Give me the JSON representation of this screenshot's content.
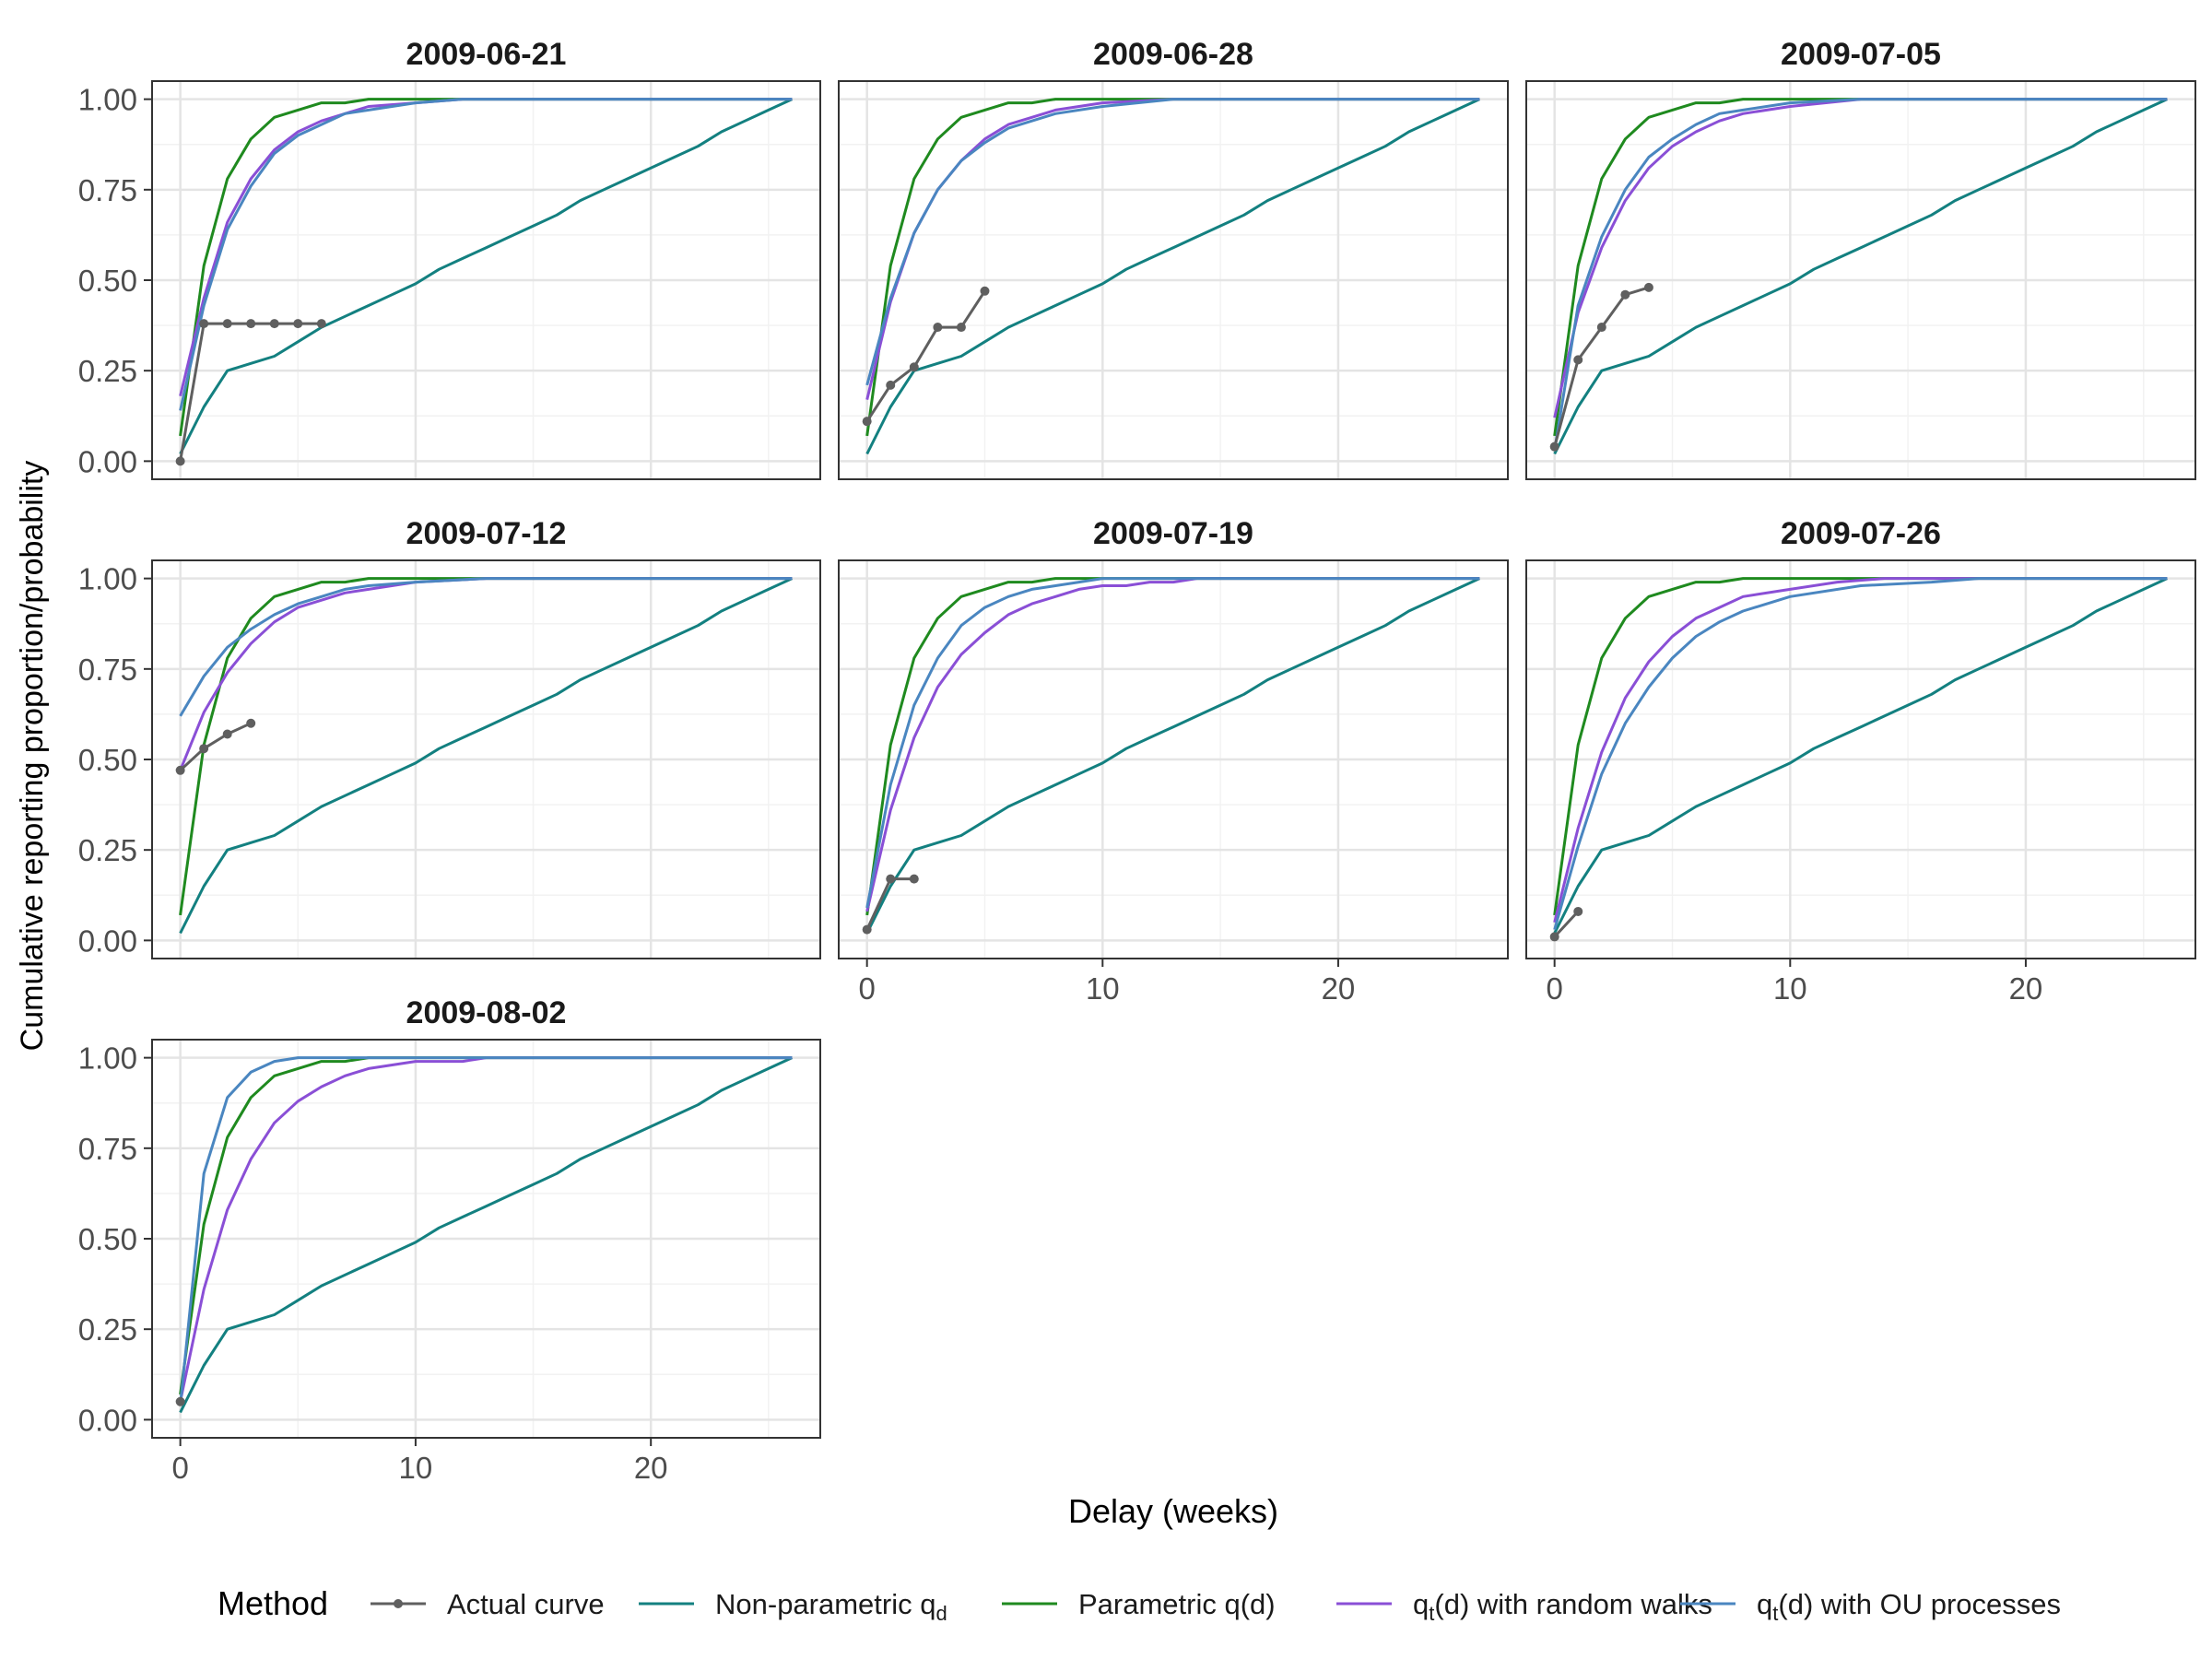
{
  "chart_data": {
    "type": "line",
    "xlabel": "Delay (weeks)",
    "ylabel": "Cumulative reporting proportion/probability",
    "x_ticks": [
      0,
      10,
      20
    ],
    "x_tick_labels": [
      "0",
      "10",
      "20"
    ],
    "y_ticks": [
      0,
      0.25,
      0.5,
      0.75,
      1
    ],
    "y_tick_labels": [
      "0.00",
      "0.25",
      "0.50",
      "0.75",
      "1.00"
    ],
    "xlim": [
      -1.2,
      27.2
    ],
    "ylim": [
      -0.05,
      1.05
    ],
    "grid": true,
    "legend": {
      "position": "bottom",
      "title": "Method",
      "entries": [
        {
          "key": "actual",
          "label": "Actual curve"
        },
        {
          "key": "nonparam",
          "label": "Non-parametric q",
          "sub": "d",
          "post": ""
        },
        {
          "key": "param",
          "label": "Parametric q(d)"
        },
        {
          "key": "rw",
          "label": "q",
          "sub": "t",
          "post": "(d) with random walks"
        },
        {
          "key": "ou",
          "label": "q",
          "sub": "t",
          "post": "(d) with OU processes"
        }
      ]
    },
    "colors": {
      "actual": "#5f5f5f",
      "nonparam": "#138080",
      "param": "#1f8a1f",
      "rw": "#8a4fd6",
      "ou": "#4a86c0"
    },
    "common_series": {
      "nonparam": {
        "x": [
          0,
          1,
          2,
          3,
          4,
          5,
          6,
          7,
          8,
          9,
          10,
          11,
          12,
          13,
          14,
          15,
          16,
          17,
          18,
          19,
          20,
          21,
          22,
          23,
          24,
          25,
          26
        ],
        "y": [
          0.02,
          0.15,
          0.25,
          0.27,
          0.29,
          0.33,
          0.37,
          0.4,
          0.43,
          0.46,
          0.49,
          0.53,
          0.56,
          0.59,
          0.62,
          0.65,
          0.68,
          0.72,
          0.75,
          0.78,
          0.81,
          0.84,
          0.87,
          0.91,
          0.94,
          0.97,
          1.0
        ]
      },
      "param": {
        "x": [
          0,
          1,
          2,
          3,
          4,
          5,
          6,
          7,
          8,
          9,
          10,
          11,
          12,
          13,
          14,
          15,
          16,
          17,
          18,
          19,
          20,
          21,
          22,
          23,
          24,
          25,
          26
        ],
        "y": [
          0.07,
          0.54,
          0.78,
          0.89,
          0.95,
          0.97,
          0.99,
          0.99,
          1.0,
          1.0,
          1.0,
          1.0,
          1.0,
          1.0,
          1.0,
          1.0,
          1.0,
          1.0,
          1.0,
          1.0,
          1.0,
          1.0,
          1.0,
          1.0,
          1.0,
          1.0,
          1.0
        ]
      }
    },
    "panels": [
      {
        "title": "2009-06-21",
        "actual": {
          "x": [
            0,
            1,
            2,
            3,
            4,
            5,
            6
          ],
          "y": [
            0.0,
            0.38,
            0.38,
            0.38,
            0.38,
            0.38,
            0.38
          ]
        },
        "rw": {
          "x": [
            0,
            1,
            2,
            3,
            4,
            5,
            6,
            7,
            8,
            10,
            12,
            26
          ],
          "y": [
            0.18,
            0.45,
            0.66,
            0.78,
            0.86,
            0.91,
            0.94,
            0.96,
            0.98,
            0.99,
            1.0,
            1.0
          ]
        },
        "ou": {
          "x": [
            0,
            1,
            2,
            3,
            4,
            5,
            6,
            7,
            8,
            10,
            12,
            26
          ],
          "y": [
            0.14,
            0.43,
            0.64,
            0.76,
            0.85,
            0.9,
            0.93,
            0.96,
            0.97,
            0.99,
            1.0,
            1.0
          ]
        }
      },
      {
        "title": "2009-06-28",
        "actual": {
          "x": [
            0,
            1,
            2,
            3,
            4,
            5
          ],
          "y": [
            0.11,
            0.21,
            0.26,
            0.37,
            0.37,
            0.47
          ]
        },
        "rw": {
          "x": [
            0,
            1,
            2,
            3,
            4,
            5,
            6,
            7,
            8,
            10,
            13,
            26
          ],
          "y": [
            0.17,
            0.44,
            0.63,
            0.75,
            0.83,
            0.89,
            0.93,
            0.95,
            0.97,
            0.99,
            1.0,
            1.0
          ]
        },
        "ou": {
          "x": [
            0,
            1,
            2,
            3,
            4,
            5,
            6,
            7,
            8,
            10,
            13,
            26
          ],
          "y": [
            0.21,
            0.45,
            0.63,
            0.75,
            0.83,
            0.88,
            0.92,
            0.94,
            0.96,
            0.98,
            1.0,
            1.0
          ]
        }
      },
      {
        "title": "2009-07-05",
        "actual": {
          "x": [
            0,
            1,
            2,
            3,
            4
          ],
          "y": [
            0.04,
            0.28,
            0.37,
            0.46,
            0.48
          ]
        },
        "rw": {
          "x": [
            0,
            1,
            2,
            3,
            4,
            5,
            6,
            7,
            8,
            10,
            13,
            26
          ],
          "y": [
            0.12,
            0.41,
            0.59,
            0.72,
            0.81,
            0.87,
            0.91,
            0.94,
            0.96,
            0.98,
            1.0,
            1.0
          ]
        },
        "ou": {
          "x": [
            0,
            1,
            2,
            3,
            4,
            5,
            6,
            7,
            8,
            10,
            13,
            26
          ],
          "y": [
            0.03,
            0.43,
            0.62,
            0.75,
            0.84,
            0.89,
            0.93,
            0.96,
            0.97,
            0.99,
            1.0,
            1.0
          ]
        }
      },
      {
        "title": "2009-07-12",
        "actual": {
          "x": [
            0,
            1,
            2,
            3
          ],
          "y": [
            0.47,
            0.53,
            0.57,
            0.6
          ]
        },
        "rw": {
          "x": [
            0,
            1,
            2,
            3,
            4,
            5,
            6,
            7,
            8,
            10,
            13,
            26
          ],
          "y": [
            0.47,
            0.63,
            0.74,
            0.82,
            0.88,
            0.92,
            0.94,
            0.96,
            0.97,
            0.99,
            1.0,
            1.0
          ]
        },
        "ou": {
          "x": [
            0,
            1,
            2,
            3,
            4,
            5,
            6,
            7,
            8,
            10,
            13,
            26
          ],
          "y": [
            0.62,
            0.73,
            0.81,
            0.86,
            0.9,
            0.93,
            0.95,
            0.97,
            0.98,
            0.99,
            1.0,
            1.0
          ]
        }
      },
      {
        "title": "2009-07-19",
        "actual": {
          "x": [
            0,
            1,
            2
          ],
          "y": [
            0.03,
            0.17,
            0.17
          ]
        },
        "rw": {
          "x": [
            0,
            1,
            2,
            3,
            4,
            5,
            6,
            7,
            8,
            9,
            10,
            11,
            12,
            13,
            14,
            26
          ],
          "y": [
            0.08,
            0.36,
            0.56,
            0.7,
            0.79,
            0.85,
            0.9,
            0.93,
            0.95,
            0.97,
            0.98,
            0.98,
            0.99,
            0.99,
            1.0,
            1.0
          ]
        },
        "ou": {
          "x": [
            0,
            1,
            2,
            3,
            4,
            5,
            6,
            7,
            8,
            9,
            10,
            11,
            26
          ],
          "y": [
            0.09,
            0.43,
            0.65,
            0.78,
            0.87,
            0.92,
            0.95,
            0.97,
            0.98,
            0.99,
            1.0,
            1.0,
            1.0
          ]
        }
      },
      {
        "title": "2009-07-26",
        "actual": {
          "x": [
            0,
            1
          ],
          "y": [
            0.01,
            0.08
          ]
        },
        "rw": {
          "x": [
            0,
            1,
            2,
            3,
            4,
            5,
            6,
            7,
            8,
            10,
            12,
            14,
            26
          ],
          "y": [
            0.05,
            0.31,
            0.52,
            0.67,
            0.77,
            0.84,
            0.89,
            0.92,
            0.95,
            0.97,
            0.99,
            1.0,
            1.0
          ]
        },
        "ou": {
          "x": [
            0,
            1,
            2,
            3,
            4,
            5,
            6,
            7,
            8,
            10,
            13,
            16,
            18,
            26
          ],
          "y": [
            0.03,
            0.26,
            0.46,
            0.6,
            0.7,
            0.78,
            0.84,
            0.88,
            0.91,
            0.95,
            0.98,
            0.99,
            1.0,
            1.0
          ]
        }
      },
      {
        "title": "2009-08-02",
        "actual": {
          "x": [
            0
          ],
          "y": [
            0.05
          ]
        },
        "rw": {
          "x": [
            0,
            1,
            2,
            3,
            4,
            5,
            6,
            7,
            8,
            10,
            12,
            13,
            26
          ],
          "y": [
            0.05,
            0.36,
            0.58,
            0.72,
            0.82,
            0.88,
            0.92,
            0.95,
            0.97,
            0.99,
            0.99,
            1.0,
            1.0
          ]
        },
        "ou": {
          "x": [
            0,
            1,
            2,
            3,
            4,
            5,
            6,
            7,
            8,
            26
          ],
          "y": [
            0.04,
            0.68,
            0.89,
            0.96,
            0.99,
            1.0,
            1.0,
            1.0,
            1.0,
            1.0
          ]
        }
      }
    ]
  }
}
